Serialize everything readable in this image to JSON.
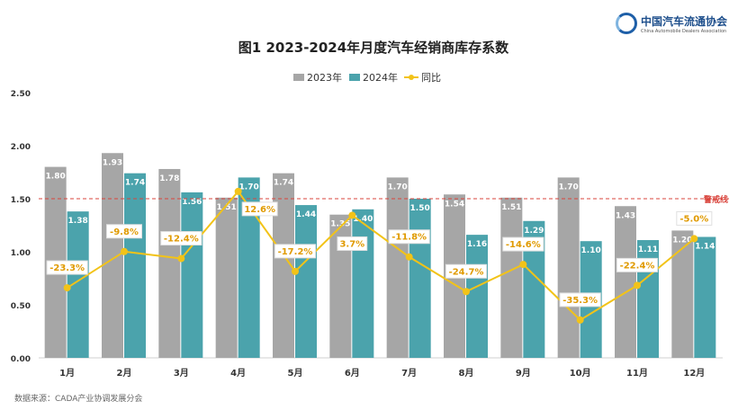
{
  "logo": {
    "name_cn": "中国汽车流通协会",
    "name_en": "China Automobile Dealers Association"
  },
  "source": "数据来源：CADA产业协调发展分会",
  "chart_data": {
    "type": "bar",
    "title": "图1  2023-2024年月度汽车经销商库存系数",
    "categories": [
      "1月",
      "2月",
      "3月",
      "4月",
      "5月",
      "6月",
      "7月",
      "8月",
      "9月",
      "10月",
      "11月",
      "12月"
    ],
    "series": [
      {
        "name": "2023年",
        "type": "bar",
        "color": "#a6a6a6",
        "values": [
          1.8,
          1.93,
          1.78,
          1.51,
          1.74,
          1.35,
          1.7,
          1.54,
          1.51,
          1.7,
          1.43,
          1.2
        ]
      },
      {
        "name": "2024年",
        "type": "bar",
        "color": "#4ba3ac",
        "values": [
          1.38,
          1.74,
          1.56,
          1.7,
          1.44,
          1.4,
          1.5,
          1.16,
          1.29,
          1.1,
          1.11,
          1.14
        ]
      },
      {
        "name": "同比",
        "type": "line",
        "axis": "secondary",
        "color": "#f2c318",
        "values": [
          -23.3,
          -9.8,
          -12.4,
          12.6,
          -17.2,
          3.7,
          -11.8,
          -24.7,
          -14.6,
          -35.3,
          -22.4,
          -5.0
        ],
        "labels": [
          "-23.3%",
          "-9.8%",
          "-12.4%",
          "12.6%",
          "-17.2%",
          "3.7%",
          "-11.8%",
          "-24.7%",
          "-14.6%",
          "-35.3%",
          "-22.4%",
          "-5.0%"
        ]
      }
    ],
    "ylim": [
      0,
      2.5
    ],
    "yticks": [
      "0.00",
      "0.50",
      "1.00",
      "1.50",
      "2.00",
      "2.50"
    ],
    "y2lim": [
      -49.4,
      49.4
    ],
    "reference_line": {
      "value": 1.5,
      "label": "警戒线",
      "color": "#d9443c"
    },
    "legend": "top-center",
    "grid": false
  }
}
